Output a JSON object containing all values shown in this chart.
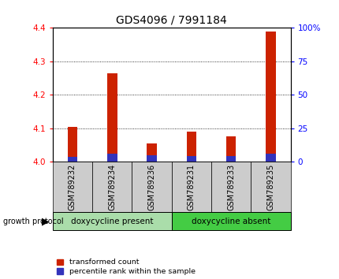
{
  "title": "GDS4096 / 7991184",
  "samples": [
    "GSM789232",
    "GSM789234",
    "GSM789236",
    "GSM789231",
    "GSM789233",
    "GSM789235"
  ],
  "red_values": [
    4.105,
    4.265,
    4.055,
    4.09,
    4.075,
    4.39
  ],
  "blue_values": [
    4.015,
    4.025,
    4.02,
    4.018,
    4.018,
    4.025
  ],
  "red_base": 4.0,
  "ylim": [
    4.0,
    4.4
  ],
  "yticks": [
    4.0,
    4.1,
    4.2,
    4.3,
    4.4
  ],
  "right_yticks": [
    0,
    25,
    50,
    75,
    100
  ],
  "right_ylabels": [
    "0",
    "25",
    "50",
    "75",
    "100%"
  ],
  "group1_label": "doxycycline present",
  "group2_label": "doxycycline absent",
  "group1_indices": [
    0,
    1,
    2
  ],
  "group2_indices": [
    3,
    4,
    5
  ],
  "protocol_label": "growth protocol",
  "legend_red": "transformed count",
  "legend_blue": "percentile rank within the sample",
  "bar_width": 0.25,
  "red_color": "#CC2200",
  "blue_color": "#3333BB",
  "group1_color": "#aaddaa",
  "group2_color": "#44cc44",
  "sample_bg_color": "#cccccc",
  "title_fontsize": 10,
  "tick_fontsize": 7.5,
  "label_fontsize": 7
}
